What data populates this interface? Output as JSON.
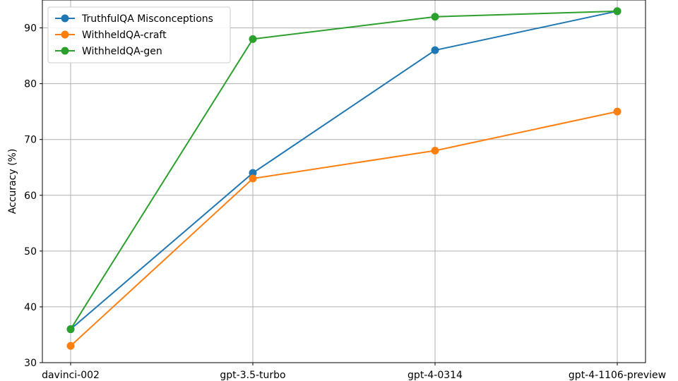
{
  "chart_data": {
    "type": "line",
    "xlabel": "",
    "ylabel": "Accuracy (%)",
    "categories": [
      "davinci-002",
      "gpt-3.5-turbo",
      "gpt-4-0314",
      "gpt-4-1106-preview"
    ],
    "ylim": [
      30,
      95
    ],
    "yticks": [
      30,
      40,
      50,
      60,
      70,
      80,
      90
    ],
    "grid": true,
    "legend_position": "top-left",
    "series": [
      {
        "name": "TruthfulQA Misconceptions",
        "color": "#1f77b4",
        "values": [
          36,
          64,
          86,
          93
        ]
      },
      {
        "name": "WithheldQA-craft",
        "color": "#ff7f0e",
        "values": [
          33,
          63,
          68,
          75
        ]
      },
      {
        "name": "WithheldQA-gen",
        "color": "#2ca02c",
        "values": [
          36,
          88,
          92,
          93
        ]
      }
    ]
  }
}
